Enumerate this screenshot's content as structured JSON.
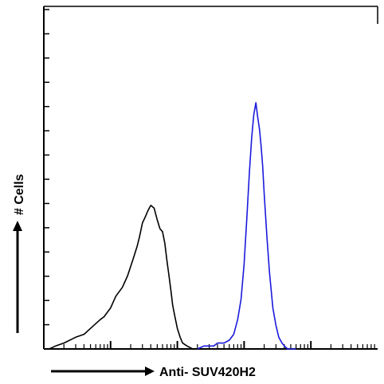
{
  "chart_data": {
    "type": "line",
    "title": "",
    "xlabel": "Anti- SUV420H2",
    "ylabel": "# Cells",
    "x_scale": "log",
    "xlim": [
      1,
      100000
    ],
    "ylim": [
      0,
      1
    ],
    "grid": false,
    "legend": "none",
    "series": [
      {
        "color": "#000000",
        "x": [
          1.0,
          1.2,
          1.5,
          2.0,
          3.0,
          4.0,
          5.0,
          7.0,
          8.0,
          10.0,
          12.0,
          15.0,
          18.0,
          22.0,
          25.0,
          27.0,
          30.0,
          33.0,
          36.0,
          40.0,
          45.0,
          50.0,
          55.0,
          60.0,
          65.0,
          70.0,
          75.0,
          80.0,
          85.0,
          90.0,
          100.0,
          110.0,
          120.0,
          140.0,
          170.0,
          200.0,
          250.0,
          300.0,
          400.0
        ],
        "y": [
          0.0,
          0.0,
          0.01,
          0.02,
          0.04,
          0.05,
          0.07,
          0.1,
          0.11,
          0.14,
          0.18,
          0.21,
          0.25,
          0.31,
          0.35,
          0.38,
          0.43,
          0.45,
          0.47,
          0.49,
          0.48,
          0.44,
          0.41,
          0.4,
          0.36,
          0.3,
          0.25,
          0.2,
          0.15,
          0.12,
          0.07,
          0.04,
          0.02,
          0.01,
          0.0,
          0.0,
          0.0,
          0.0,
          0.0
        ]
      },
      {
        "color": "#1a1adc",
        "x": [
          200.0,
          250.0,
          300.0,
          350.0,
          400.0,
          500.0,
          600.0,
          700.0,
          800.0,
          900.0,
          1000.0,
          1100.0,
          1200.0,
          1300.0,
          1400.0,
          1500.0,
          1600.0,
          1700.0,
          1800.0,
          1900.0,
          2000.0,
          2200.0,
          2400.0,
          2700.0,
          3000.0,
          3300.0,
          3700.0,
          4000.0,
          4500.0,
          5000.0,
          6000.0
        ],
        "y": [
          0.0,
          0.01,
          0.01,
          0.01,
          0.02,
          0.02,
          0.03,
          0.05,
          0.1,
          0.17,
          0.29,
          0.45,
          0.6,
          0.72,
          0.8,
          0.84,
          0.79,
          0.75,
          0.69,
          0.62,
          0.53,
          0.38,
          0.26,
          0.14,
          0.08,
          0.04,
          0.02,
          0.01,
          0.0,
          0.0,
          0.0
        ]
      }
    ]
  }
}
